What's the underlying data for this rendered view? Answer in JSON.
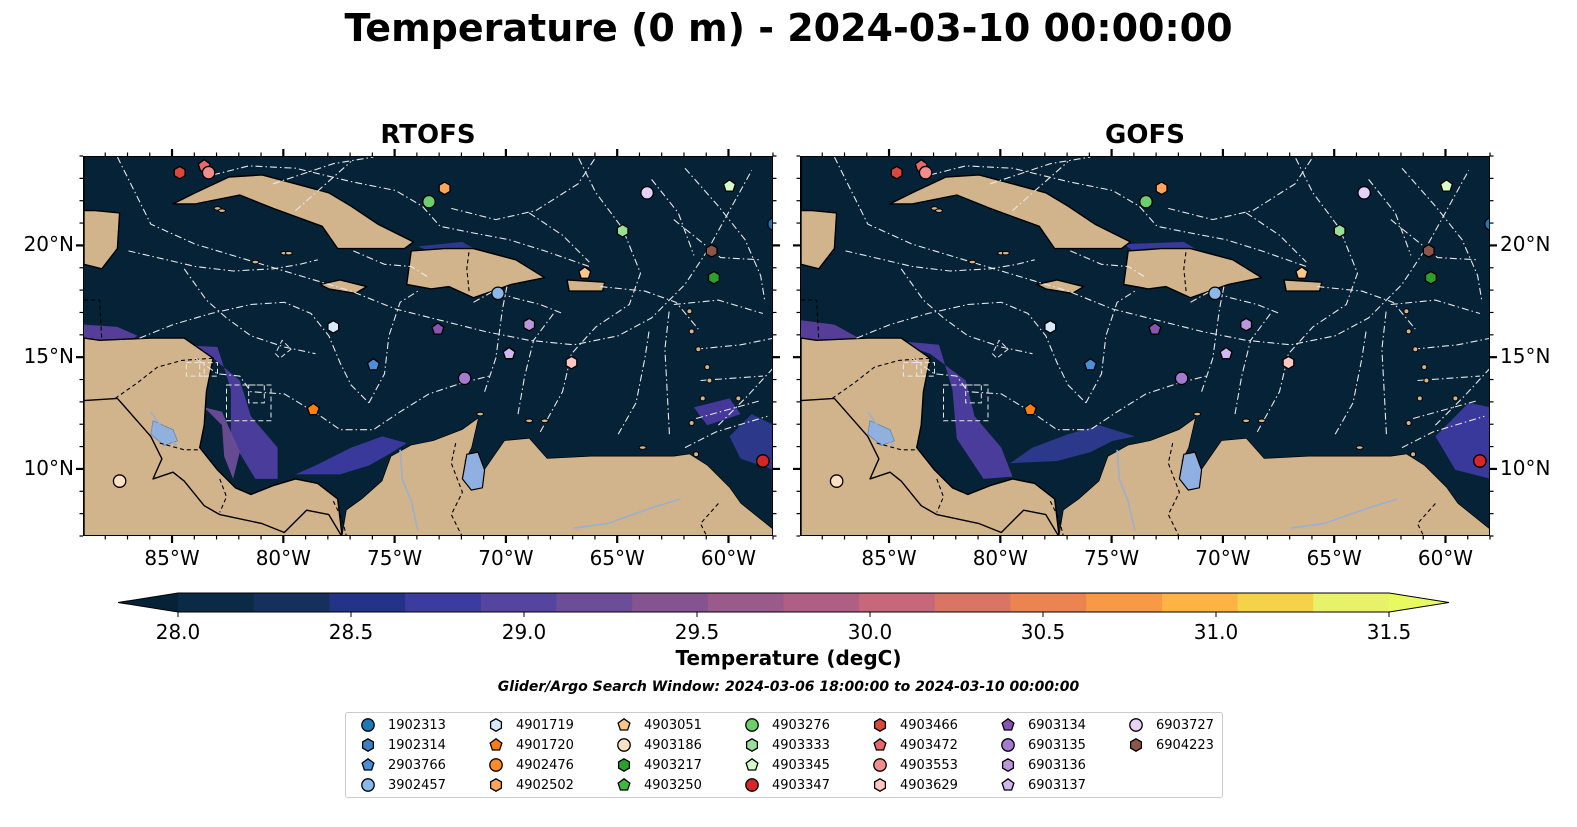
{
  "title": "Temperature (0 m) - 2024-03-10 00:00:00",
  "panels": [
    {
      "id": "rtofs",
      "title": "RTOFS"
    },
    {
      "id": "gofs",
      "title": "GOFS"
    }
  ],
  "colorbar": {
    "label": "Temperature (degC)",
    "ticks": [
      "28.0",
      "28.5",
      "29.0",
      "29.5",
      "30.0",
      "30.5",
      "31.0",
      "31.5"
    ],
    "colors": [
      "#0a2a45",
      "#15305c",
      "#233488",
      "#3b3ba0",
      "#5545a0",
      "#6c4e98",
      "#83548f",
      "#9a5a8a",
      "#b05f84",
      "#c6687a",
      "#da7565",
      "#ec8452",
      "#f89a45",
      "#fdb444",
      "#f5d24a",
      "#e7f26a"
    ],
    "extend_low_color": "#062236",
    "extend_high_color": "#e8fa60"
  },
  "search_window": "Glider/Argo Search Window: 2024-03-06 18:00:00 to 2024-03-10 00:00:00",
  "chart_data": {
    "type": "map",
    "field": "sea surface temperature",
    "units": "degC",
    "depth": "0 m",
    "time": "2024-03-10 00:00:00",
    "lon_range": [
      -89,
      -58
    ],
    "lat_range": [
      7,
      24
    ],
    "lon_ticks": [
      "85°W",
      "80°W",
      "75°W",
      "70°W",
      "65°W",
      "60°W"
    ],
    "lon_tick_values": [
      -85,
      -80,
      -75,
      -70,
      -65,
      -60
    ],
    "lat_ticks": [
      "20°N",
      "15°N",
      "10°N"
    ],
    "lat_tick_values": [
      20,
      15,
      10
    ],
    "clim": [
      28.0,
      31.5
    ],
    "floats": [
      {
        "id": "1902313",
        "color": "#1f77b4",
        "marker": "circle",
        "lon": -58.0,
        "lat": 21.0
      },
      {
        "id": "1902314",
        "color": "#3d7fc0",
        "marker": "hexagon",
        "lon": null,
        "lat": null
      },
      {
        "id": "2903766",
        "color": "#4a90d9",
        "marker": "pentagon",
        "lon": -76.0,
        "lat": 14.7
      },
      {
        "id": "3902457",
        "color": "#8ab8ea",
        "marker": "circle",
        "lon": -70.4,
        "lat": 17.9
      },
      {
        "id": "4901719",
        "color": "#d6eaff",
        "marker": "hexagon",
        "lon": -77.8,
        "lat": 16.4
      },
      {
        "id": "4901720",
        "color": "#ff7f0e",
        "marker": "pentagon",
        "lon": -78.7,
        "lat": 12.7
      },
      {
        "id": "4902476",
        "color": "#ff8c2a",
        "marker": "circle",
        "lon": null,
        "lat": null
      },
      {
        "id": "4902502",
        "color": "#ffa65c",
        "marker": "hexagon",
        "lon": -72.8,
        "lat": 22.6
      },
      {
        "id": "4903051",
        "color": "#ffc68c",
        "marker": "pentagon",
        "lon": -66.5,
        "lat": 18.8
      },
      {
        "id": "4903186",
        "color": "#ffe0c2",
        "marker": "circle",
        "lon": -87.4,
        "lat": 9.5
      },
      {
        "id": "4903217",
        "color": "#2ca02c",
        "marker": "hexagon",
        "lon": -60.7,
        "lat": 18.6
      },
      {
        "id": "4903250",
        "color": "#3fb83f",
        "marker": "pentagon",
        "lon": null,
        "lat": null
      },
      {
        "id": "4903276",
        "color": "#6ccf6c",
        "marker": "circle",
        "lon": -73.5,
        "lat": 22.0
      },
      {
        "id": "4903333",
        "color": "#98e098",
        "marker": "hexagon",
        "lon": -64.8,
        "lat": 20.7
      },
      {
        "id": "4903345",
        "color": "#d4ffc8",
        "marker": "pentagon",
        "lon": -60.0,
        "lat": 22.7
      },
      {
        "id": "4903347",
        "color": "#d62728",
        "marker": "circle",
        "lon": -58.5,
        "lat": 10.4
      },
      {
        "id": "4903466",
        "color": "#d9473f",
        "marker": "hexagon",
        "lon": -84.7,
        "lat": 23.3
      },
      {
        "id": "4903472",
        "color": "#e8686a",
        "marker": "pentagon",
        "lon": -83.6,
        "lat": 23.6
      },
      {
        "id": "4903553",
        "color": "#f08d8e",
        "marker": "circle",
        "lon": -83.4,
        "lat": 23.3
      },
      {
        "id": "4903629",
        "color": "#ffc6c2",
        "marker": "hexagon",
        "lon": -67.1,
        "lat": 14.8
      },
      {
        "id": "6903134",
        "color": "#8a55b0",
        "marker": "pentagon",
        "lon": -73.1,
        "lat": 16.3
      },
      {
        "id": "6903135",
        "color": "#a57bd0",
        "marker": "circle",
        "lon": -71.9,
        "lat": 14.1
      },
      {
        "id": "6903136",
        "color": "#bb98dc",
        "marker": "hexagon",
        "lon": -69.0,
        "lat": 16.5
      },
      {
        "id": "6903137",
        "color": "#d2b8f0",
        "marker": "pentagon",
        "lon": -69.9,
        "lat": 15.2
      },
      {
        "id": "6903727",
        "color": "#e6d2f8",
        "marker": "circle",
        "lon": -63.7,
        "lat": 22.4
      },
      {
        "id": "6904223",
        "color": "#8c564b",
        "marker": "hexagon",
        "lon": -60.8,
        "lat": 19.8
      }
    ]
  }
}
